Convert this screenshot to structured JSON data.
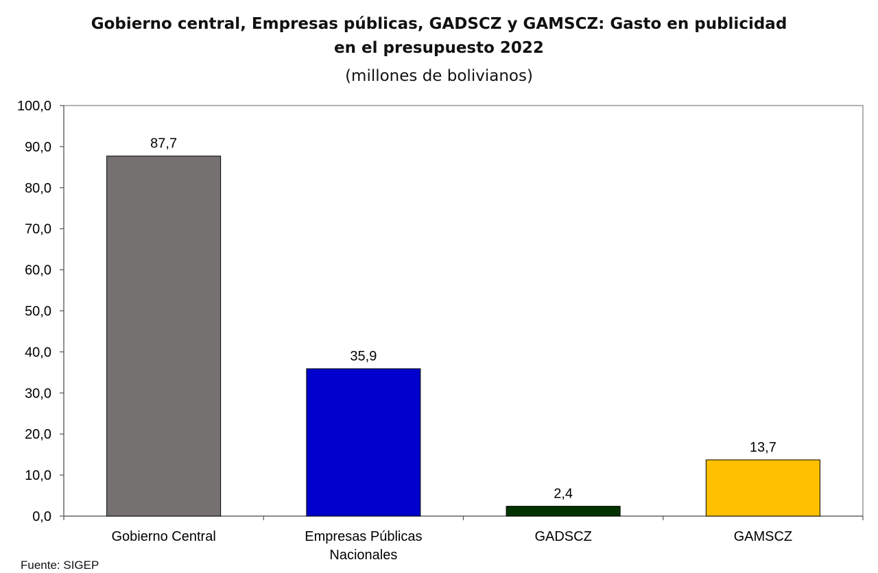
{
  "chart_data": {
    "type": "bar",
    "title_line1": "Gobierno central, Empresas públicas, GADSCZ y GAMSCZ: Gasto en publicidad",
    "title_line2": "en el presupuesto 2022",
    "subtitle": "(millones de bolivianos)",
    "categories": [
      [
        "Gobierno Central"
      ],
      [
        "Empresas Públicas",
        "Nacionales"
      ],
      [
        "GADSCZ"
      ],
      [
        "GAMSCZ"
      ]
    ],
    "values": [
      87.7,
      35.9,
      2.4,
      13.7
    ],
    "data_labels": [
      "87,7",
      "35,9",
      "2,4",
      "13,7"
    ],
    "colors": [
      "#767171",
      "#0000CC",
      "#003300",
      "#FFC000"
    ],
    "ylim": [
      0,
      100
    ],
    "yticks": [
      0,
      10,
      20,
      30,
      40,
      50,
      60,
      70,
      80,
      90,
      100
    ],
    "ytick_labels": [
      "0,0",
      "10,0",
      "20,0",
      "30,0",
      "40,0",
      "50,0",
      "60,0",
      "70,0",
      "80,0",
      "90,0",
      "100,0"
    ],
    "xlabel": "",
    "ylabel": "",
    "grid": false,
    "legend": "none"
  },
  "source": "Fuente: SIGEP"
}
